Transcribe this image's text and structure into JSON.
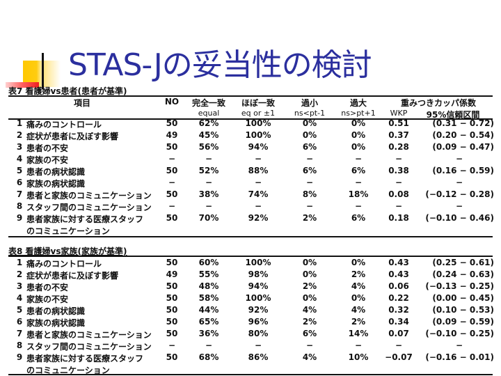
{
  "slide": {
    "title": "STAS-Jの妥当性の検討",
    "title_color": "#2b2f9e"
  },
  "headers": {
    "item": "項目",
    "no": "NO",
    "equal": "完全一致",
    "equal_sub": "equal",
    "approx": "ほぼ一致",
    "approx_sub": "eq or ±1",
    "under": "過小",
    "under_sub": "ns<pt-1",
    "over": "過大",
    "over_sub": "ns>pt+1",
    "kappa": "重みつきカッパ係数",
    "wkp": "WKP",
    "ci": "95%信頼区間"
  },
  "table7": {
    "caption": "表7 看護婦vs患者(患者が基準)",
    "rows": [
      {
        "num": "1",
        "item": "痛みのコントロール",
        "item2": "",
        "no": "50",
        "equal": "62%",
        "approx": "100%",
        "under": "0%",
        "over": "0%",
        "wkp": "0.51",
        "ci": "(0.31 − 0.72)"
      },
      {
        "num": "2",
        "item": "症状が患者に及ぼす影響",
        "item2": "",
        "no": "49",
        "equal": "45%",
        "approx": "100%",
        "under": "0%",
        "over": "0%",
        "wkp": "0.37",
        "ci": "(0.20 − 0.54)"
      },
      {
        "num": "3",
        "item": "患者の不安",
        "item2": "",
        "no": "50",
        "equal": "56%",
        "approx": "94%",
        "under": "6%",
        "over": "0%",
        "wkp": "0.28",
        "ci": "(0.09 − 0.47)"
      },
      {
        "num": "4",
        "item": "家族の不安",
        "item2": "",
        "no": "−",
        "equal": "−",
        "approx": "−",
        "under": "−",
        "over": "−",
        "wkp": "−",
        "ci": "−"
      },
      {
        "num": "5",
        "item": "患者の病状認識",
        "item2": "",
        "no": "50",
        "equal": "52%",
        "approx": "88%",
        "under": "6%",
        "over": "6%",
        "wkp": "0.38",
        "ci": "(0.16 − 0.59)"
      },
      {
        "num": "6",
        "item": "家族の病状認識",
        "item2": "",
        "no": "−",
        "equal": "−",
        "approx": "−",
        "under": "−",
        "over": "−",
        "wkp": "−",
        "ci": "−"
      },
      {
        "num": "7",
        "item": "患者と家族のコミュニケーション",
        "item2": "",
        "no": "50",
        "equal": "38%",
        "approx": "74%",
        "under": "8%",
        "over": "18%",
        "wkp": "0.08",
        "ci": "(−0.12 − 0.28)"
      },
      {
        "num": "8",
        "item": "スタッフ間のコミュニケーション",
        "item2": "",
        "no": "−",
        "equal": "−",
        "approx": "−",
        "under": "−",
        "over": "−",
        "wkp": "−",
        "ci": "−"
      },
      {
        "num": "9",
        "item": "患者家族に対する医療スタッフ",
        "item2": "のコミュニケーション",
        "no": "50",
        "equal": "70%",
        "approx": "92%",
        "under": "2%",
        "over": "6%",
        "wkp": "0.18",
        "ci": "(−0.10 − 0.46)"
      }
    ]
  },
  "table8": {
    "caption": "表8 看護婦vs家族(家族が基準)",
    "rows": [
      {
        "num": "1",
        "item": "痛みのコントロール",
        "item2": "",
        "no": "50",
        "equal": "60%",
        "approx": "100%",
        "under": "0%",
        "over": "0%",
        "wkp": "0.43",
        "ci": "(0.25 − 0.61)"
      },
      {
        "num": "2",
        "item": "症状が患者に及ぼす影響",
        "item2": "",
        "no": "49",
        "equal": "55%",
        "approx": "98%",
        "under": "0%",
        "over": "2%",
        "wkp": "0.43",
        "ci": "(0.24 − 0.63)"
      },
      {
        "num": "3",
        "item": "患者の不安",
        "item2": "",
        "no": "50",
        "equal": "48%",
        "approx": "94%",
        "under": "2%",
        "over": "4%",
        "wkp": "0.06",
        "ci": "(−0.13 − 0.25)"
      },
      {
        "num": "4",
        "item": "家族の不安",
        "item2": "",
        "no": "50",
        "equal": "58%",
        "approx": "100%",
        "under": "0%",
        "over": "0%",
        "wkp": "0.22",
        "ci": "(0.00 − 0.45)"
      },
      {
        "num": "5",
        "item": "患者の病状認識",
        "item2": "",
        "no": "50",
        "equal": "44%",
        "approx": "92%",
        "under": "4%",
        "over": "4%",
        "wkp": "0.32",
        "ci": "(0.10 − 0.53)"
      },
      {
        "num": "6",
        "item": "家族の病状認識",
        "item2": "",
        "no": "50",
        "equal": "65%",
        "approx": "96%",
        "under": "2%",
        "over": "2%",
        "wkp": "0.34",
        "ci": "(0.09 − 0.59)"
      },
      {
        "num": "7",
        "item": "患者と家族のコミュニケーション",
        "item2": "",
        "no": "50",
        "equal": "36%",
        "approx": "80%",
        "under": "6%",
        "over": "14%",
        "wkp": "0.07",
        "ci": "(−0.10 − 0.25)"
      },
      {
        "num": "8",
        "item": "スタッフ間のコミュニケーション",
        "item2": "",
        "no": "−",
        "equal": "−",
        "approx": "−",
        "under": "−",
        "over": "−",
        "wkp": "−",
        "ci": "−"
      },
      {
        "num": "9",
        "item": "患者家族に対する医療スタッフ",
        "item2": "のコミュニケーション",
        "no": "50",
        "equal": "68%",
        "approx": "86%",
        "under": "4%",
        "over": "10%",
        "wkp": "−0.07",
        "ci": "(−0.16 − 0.01)"
      }
    ]
  }
}
